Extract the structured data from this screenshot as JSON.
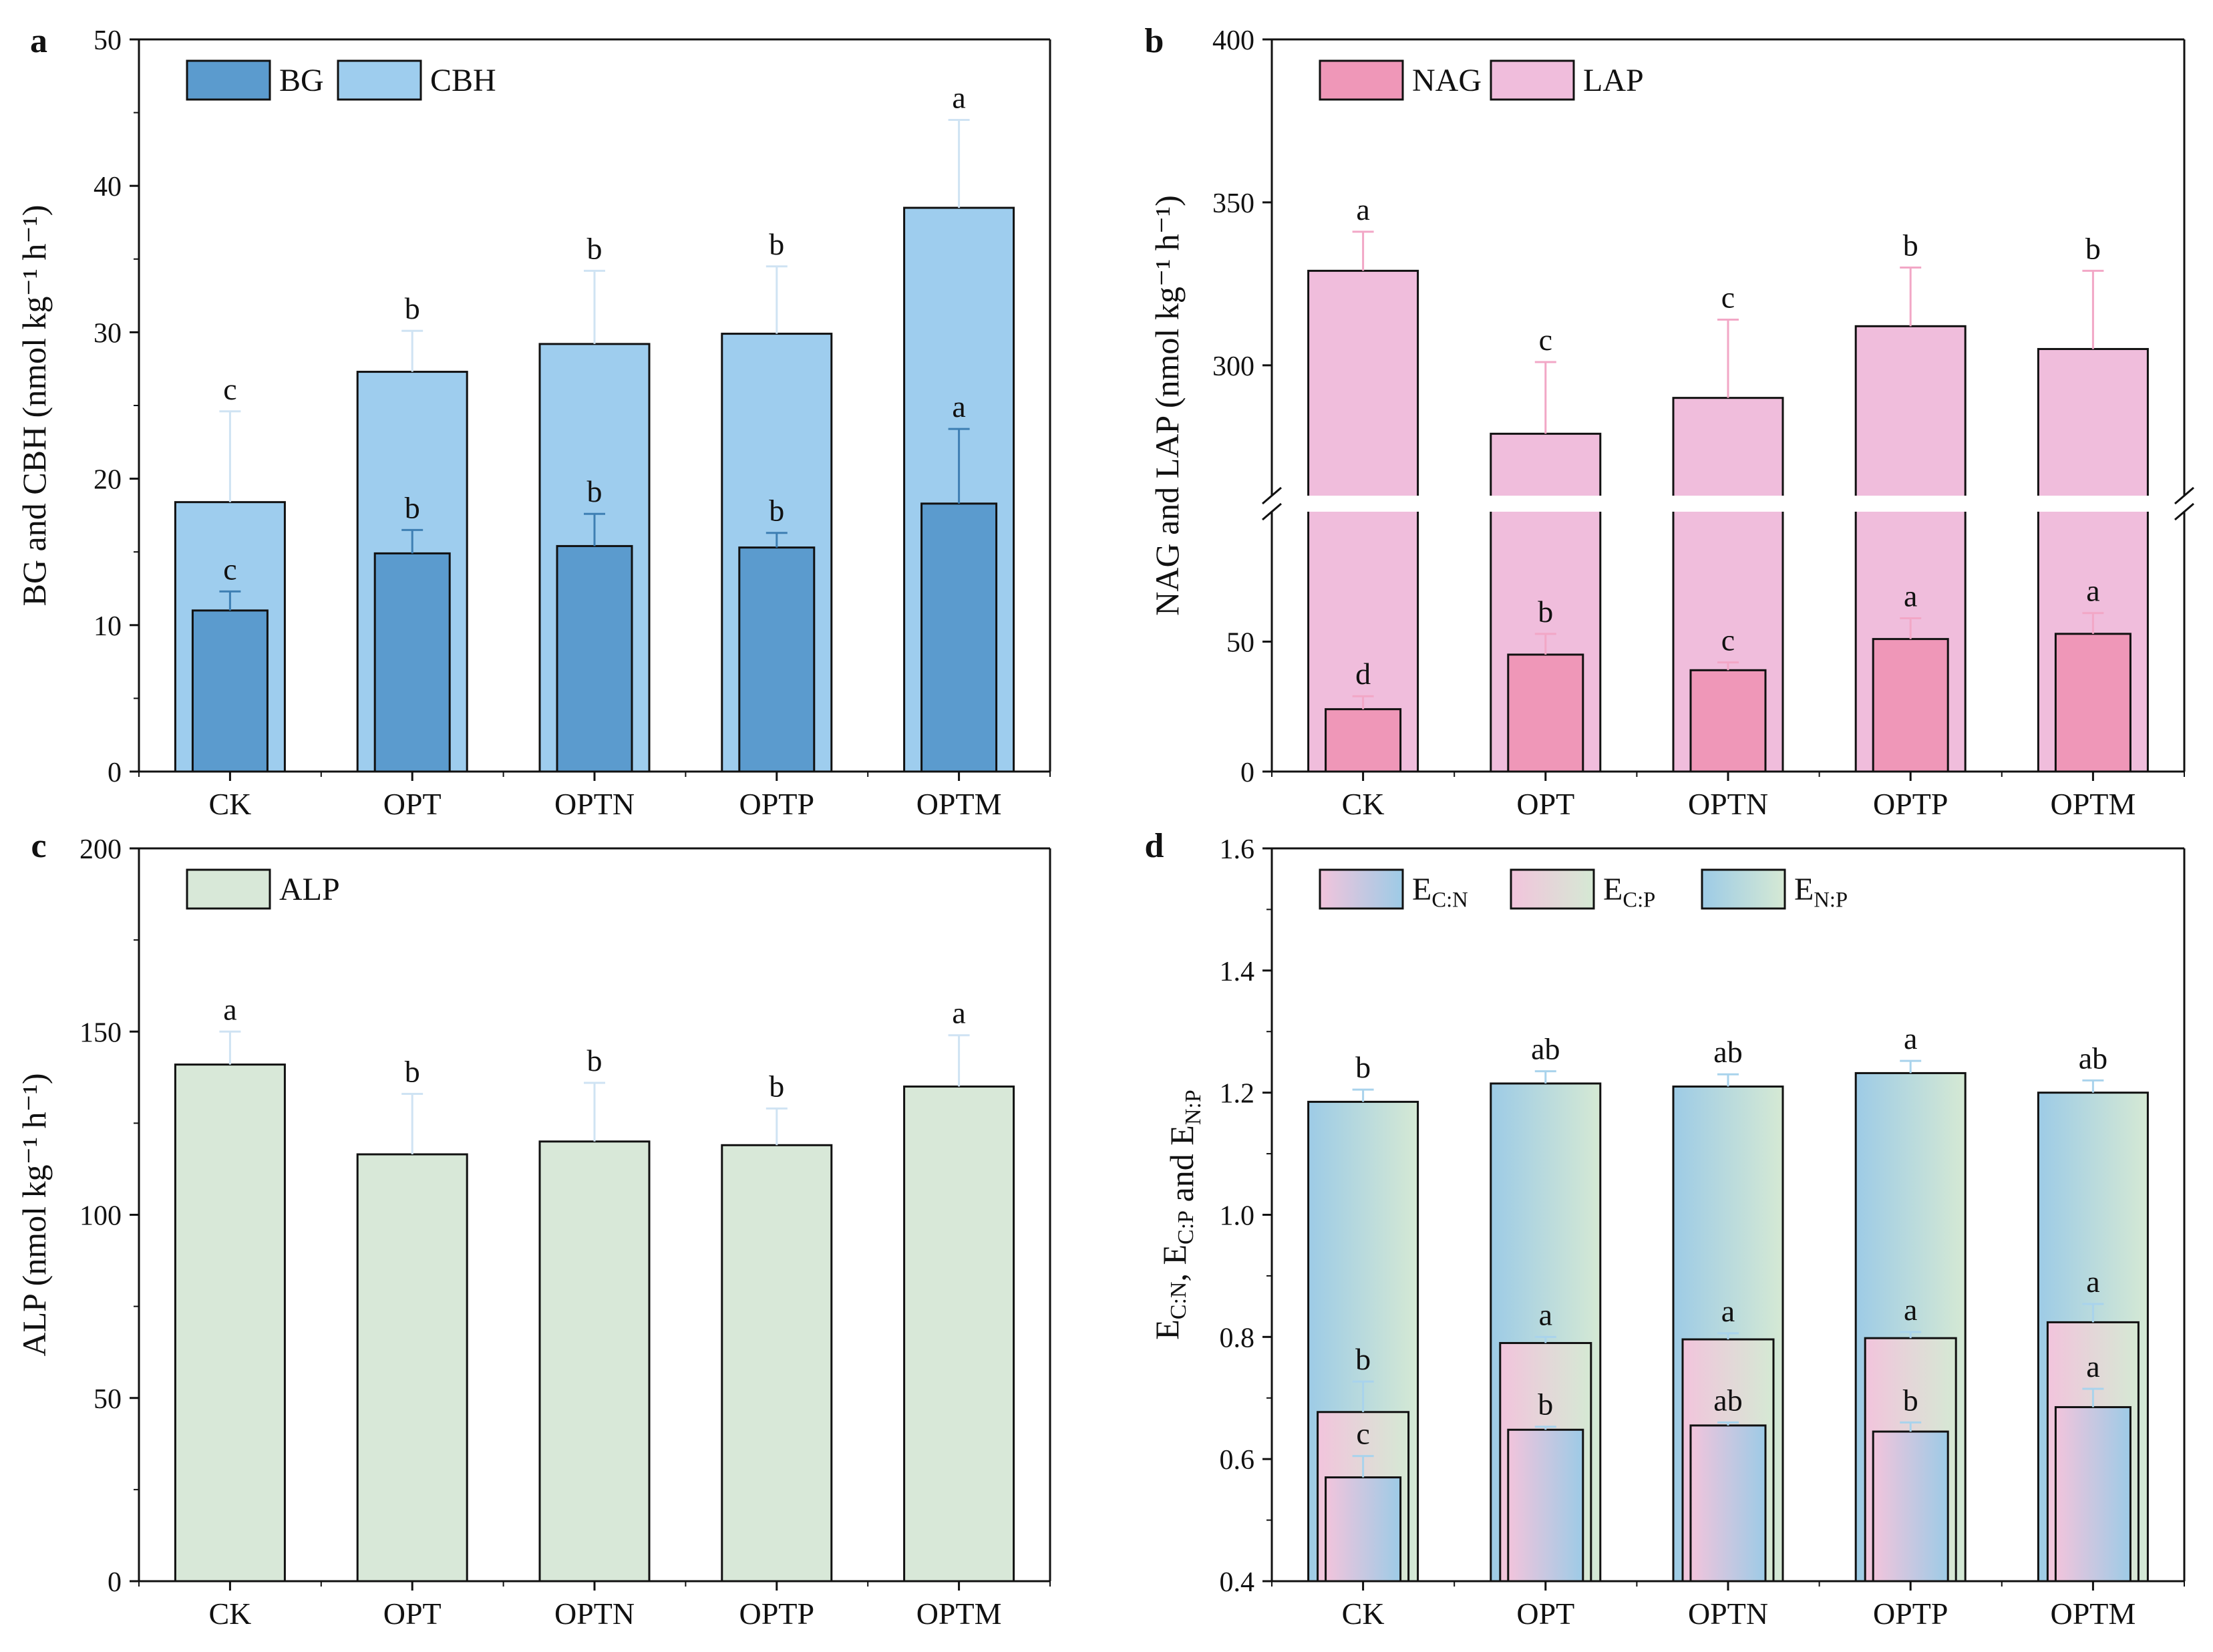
{
  "figure": {
    "categories": [
      "CK",
      "OPT",
      "OPTN",
      "OPTP",
      "OPTM"
    ]
  },
  "chart_data": [
    {
      "panel": "a",
      "type": "bar",
      "layout": "overlaid",
      "categories": [
        "CK",
        "OPT",
        "OPTN",
        "OPTP",
        "OPTM"
      ],
      "ylabel": "BG and CBH  (nmol kg⁻¹ h⁻¹)",
      "ylim": [
        0,
        50
      ],
      "yticks": [
        0,
        10,
        20,
        30,
        40,
        50
      ],
      "series": [
        {
          "name": "CBH",
          "role": "wide",
          "color": "#9ecdee",
          "values": [
            18.4,
            27.3,
            29.2,
            29.9,
            38.5
          ],
          "errors": [
            6.2,
            2.8,
            5.0,
            4.6,
            6.0
          ],
          "letters": [
            "c",
            "b",
            "b",
            "b",
            "a"
          ]
        },
        {
          "name": "BG",
          "role": "narrow",
          "color": "#5b9bce",
          "values": [
            11.0,
            14.9,
            15.4,
            15.3,
            18.3
          ],
          "errors": [
            1.3,
            1.6,
            2.2,
            1.0,
            5.1
          ],
          "letters": [
            "c",
            "b",
            "b",
            "b",
            "a"
          ]
        }
      ],
      "legend": [
        "BG",
        "CBH"
      ]
    },
    {
      "panel": "b",
      "type": "bar",
      "layout": "overlaid",
      "broken_axis": true,
      "categories": [
        "CK",
        "OPT",
        "OPTN",
        "OPTP",
        "OPTM"
      ],
      "ylabel": "NAG and LAP (nmol kg⁻¹ h⁻¹)",
      "ylim_lower": [
        0,
        100
      ],
      "yticks_lower": [
        0,
        50
      ],
      "ylim_upper": [
        260,
        400
      ],
      "yticks_upper": [
        300,
        350,
        400
      ],
      "series": [
        {
          "name": "LAP",
          "role": "wide",
          "color": "#f0bddc",
          "values": [
            329,
            279,
            290,
            312,
            305
          ],
          "errors": [
            12,
            22,
            24,
            18,
            24
          ],
          "letters": [
            "a",
            "c",
            "c",
            "b",
            "b"
          ]
        },
        {
          "name": "NAG",
          "role": "narrow",
          "color": "#ef97b8",
          "values": [
            24,
            45,
            39,
            51,
            53
          ],
          "errors": [
            5,
            8,
            3,
            8,
            8
          ],
          "letters": [
            "d",
            "b",
            "c",
            "a",
            "a"
          ]
        }
      ],
      "legend": [
        "NAG",
        "LAP"
      ]
    },
    {
      "panel": "c",
      "type": "bar",
      "categories": [
        "CK",
        "OPT",
        "OPTN",
        "OPTP",
        "OPTM"
      ],
      "ylabel": "ALP (nmol kg⁻¹ h⁻¹)",
      "ylim": [
        0,
        200
      ],
      "yticks": [
        0,
        50,
        100,
        150,
        200
      ],
      "series": [
        {
          "name": "ALP",
          "role": "wide",
          "color": "#d8e8d8",
          "values": [
            141,
            116.5,
            120,
            119,
            135
          ],
          "errors": [
            9,
            16.5,
            16,
            10,
            14
          ],
          "letters": [
            "a",
            "b",
            "b",
            "b",
            "a"
          ]
        }
      ],
      "legend": [
        "ALP"
      ]
    },
    {
      "panel": "d",
      "type": "bar",
      "layout": "overlaid",
      "categories": [
        "CK",
        "OPT",
        "OPTN",
        "OPTP",
        "OPTM"
      ],
      "ylabel": "E_C:N, E_C:P and E_N:P",
      "ylim": [
        0.4,
        1.6
      ],
      "yticks": [
        0.4,
        0.6,
        0.8,
        1.0,
        1.2,
        1.4,
        1.6
      ],
      "series": [
        {
          "name": "E_N:P",
          "role": "wide",
          "gradient": [
            "#9dcbe6",
            "#d5e9d4"
          ],
          "values": [
            1.185,
            1.215,
            1.21,
            1.232,
            1.2
          ],
          "errors": [
            0.02,
            0.02,
            0.02,
            0.02,
            0.02
          ],
          "letters": [
            "b",
            "ab",
            "ab",
            "a",
            "ab"
          ]
        },
        {
          "name": "E_C:P",
          "role": "medium",
          "gradient": [
            "#f2c4dc",
            "#d5e9d4"
          ],
          "values": [
            0.677,
            0.79,
            0.796,
            0.798,
            0.824
          ],
          "errors": [
            0.05,
            0.01,
            0.01,
            0.01,
            0.03
          ],
          "letters": [
            "b",
            "a",
            "a",
            "a",
            "a"
          ]
        },
        {
          "name": "E_C:N",
          "role": "narrow",
          "gradient": [
            "#f2c4dc",
            "#9dcbe6"
          ],
          "values": [
            0.57,
            0.648,
            0.655,
            0.645,
            0.685
          ],
          "errors": [
            0.035,
            0.005,
            0.005,
            0.015,
            0.03
          ],
          "letters": [
            "c",
            "b",
            "ab",
            "b",
            "a"
          ]
        }
      ],
      "legend": [
        "E_C:N",
        "E_C:P",
        "E_N:P"
      ]
    }
  ]
}
